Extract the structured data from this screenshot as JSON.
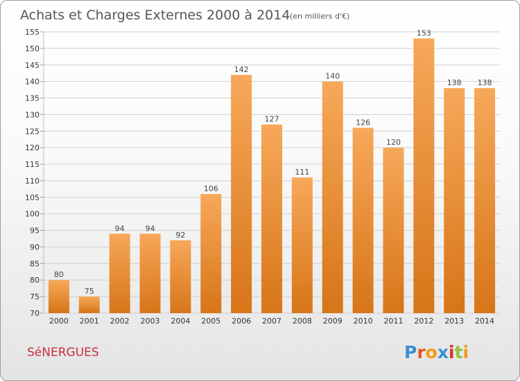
{
  "title": "Achats et Charges Externes 2000 à 2014",
  "subtitle": "(en milliers d'€)",
  "place": "SéNERGUES",
  "logo": {
    "text": "Proxiti",
    "colors": [
      "#3a8fd4",
      "#e8542b",
      "#f29b1b",
      "#3a8fd4",
      "#d8352c",
      "#8cc63f",
      "#f29b1b"
    ]
  },
  "colors": {
    "bar_top": "#f7a85a",
    "bar_bottom": "#d77518",
    "grid": "#cfcfcf"
  },
  "chart_data": {
    "type": "bar",
    "categories": [
      "2000",
      "2001",
      "2002",
      "2003",
      "2004",
      "2005",
      "2006",
      "2007",
      "2008",
      "2009",
      "2010",
      "2011",
      "2012",
      "2013",
      "2014"
    ],
    "values": [
      80,
      75,
      94,
      94,
      92,
      106,
      142,
      127,
      111,
      140,
      126,
      120,
      153,
      138,
      138
    ],
    "ylim": [
      70,
      155
    ],
    "yticks": [
      70,
      75,
      80,
      85,
      90,
      95,
      100,
      105,
      110,
      115,
      120,
      125,
      130,
      135,
      140,
      145,
      150,
      155
    ],
    "grid": true,
    "data_labels": true
  }
}
